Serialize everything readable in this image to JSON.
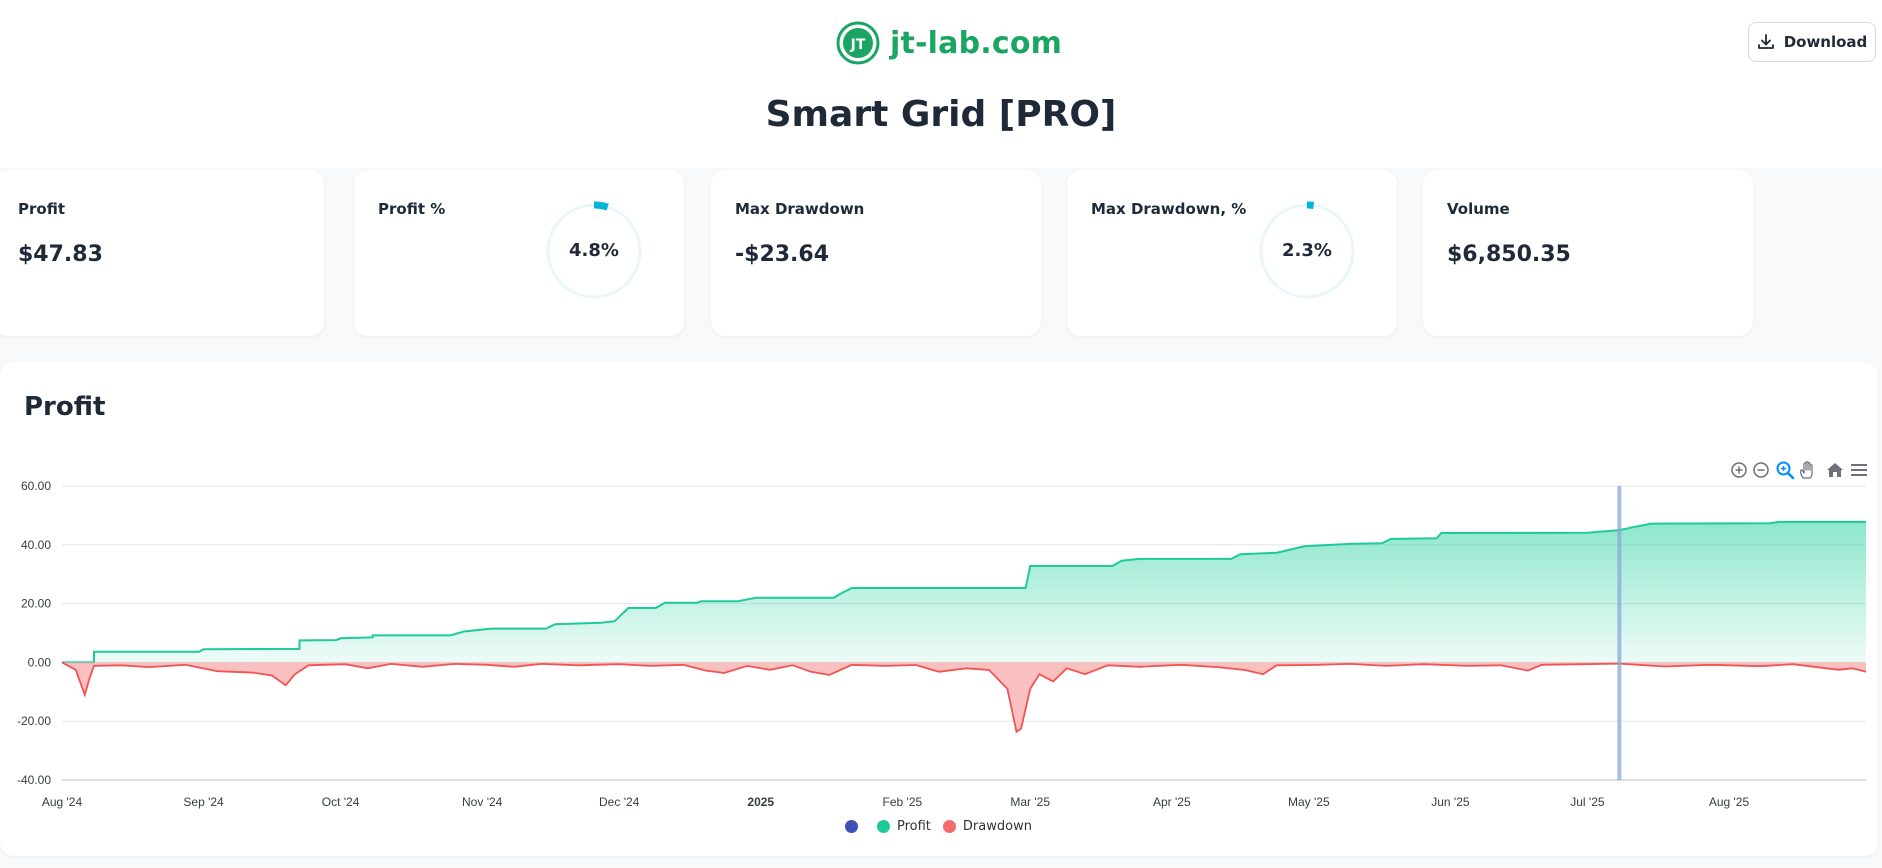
{
  "brand": {
    "name": "jt-lab.com",
    "logo_text": "JT",
    "color": "#1aa562"
  },
  "header": {
    "download_label": "Download",
    "download_icon": "download-icon"
  },
  "page": {
    "title": "Smart Grid [PRO]"
  },
  "metrics": [
    {
      "label": "Profit",
      "value": "$47.83"
    },
    {
      "label": "Profit %",
      "value": "4.8%",
      "percent": 4.8
    },
    {
      "label": "Max Drawdown",
      "value": "-$23.64"
    },
    {
      "label": "Max Drawdown, %",
      "value": "2.3%",
      "percent": 2.3
    },
    {
      "label": "Volume",
      "value": "$6,850.35"
    }
  ],
  "chart": {
    "title": "Profit"
  },
  "toolbar": [
    {
      "name": "zoom-in-icon"
    },
    {
      "name": "zoom-out-icon"
    },
    {
      "name": "selection-zoom-icon"
    },
    {
      "name": "pan-icon"
    },
    {
      "name": "home-icon"
    },
    {
      "name": "menu-icon"
    }
  ],
  "legend": [
    {
      "label": "",
      "color": "#3f51b5"
    },
    {
      "label": "Profit",
      "color": "#1ec99a"
    },
    {
      "label": "Drawdown",
      "color": "#f46b6b"
    }
  ],
  "colors": {
    "profit_line": "#1ec99a",
    "profit_fill": "#2fd3a3",
    "drawdown_line": "#f05454",
    "drawdown_fill": "#f9b4b4",
    "crosshair": "#8aa8d6",
    "accent": "#00b5d6"
  },
  "chart_data": {
    "type": "area",
    "title": "Profit",
    "xlabel": "",
    "ylabel": "",
    "ylim": [
      -40,
      60
    ],
    "yticks": [
      "60.00",
      "40.00",
      "20.00",
      "0.00",
      "-20.00",
      "-40.00"
    ],
    "xticks": [
      "Aug '24",
      "Sep '24",
      "Oct '24",
      "Nov '24",
      "Dec '24",
      "2025",
      "Feb '25",
      "Mar '25",
      "Apr '25",
      "May '25",
      "Jun '25",
      "Jul '25",
      "Aug '25"
    ],
    "x_range": [
      "2024-08-01",
      "2025-08-31"
    ],
    "crosshair_x": "2025-07-08",
    "grid": true,
    "legend_position": "bottom-center",
    "series": [
      {
        "name": "Profit",
        "points": [
          [
            "2024-08-01",
            0.0
          ],
          [
            "2024-08-08",
            0.0
          ],
          [
            "2024-08-08",
            3.6
          ],
          [
            "2024-08-31",
            3.6
          ],
          [
            "2024-09-01",
            4.5
          ],
          [
            "2024-09-22",
            4.6
          ],
          [
            "2024-09-22",
            7.5
          ],
          [
            "2024-09-30",
            7.6
          ],
          [
            "2024-10-01",
            8.2
          ],
          [
            "2024-10-08",
            8.5
          ],
          [
            "2024-10-08",
            9.2
          ],
          [
            "2024-10-25",
            9.2
          ],
          [
            "2024-10-28",
            10.5
          ],
          [
            "2024-11-03",
            11.5
          ],
          [
            "2024-11-15",
            11.5
          ],
          [
            "2024-11-17",
            13.0
          ],
          [
            "2024-11-27",
            13.5
          ],
          [
            "2024-11-30",
            14.0
          ],
          [
            "2024-12-03",
            18.5
          ],
          [
            "2024-12-09",
            18.5
          ],
          [
            "2024-12-11",
            20.3
          ],
          [
            "2024-12-18",
            20.3
          ],
          [
            "2024-12-19",
            20.8
          ],
          [
            "2024-12-27",
            20.8
          ],
          [
            "2024-12-31",
            22.0
          ],
          [
            "2025-01-17",
            22.0
          ],
          [
            "2025-01-19",
            23.8
          ],
          [
            "2025-01-21",
            25.3
          ],
          [
            "2025-02-28",
            25.3
          ],
          [
            "2025-03-01",
            32.8
          ],
          [
            "2025-03-19",
            32.8
          ],
          [
            "2025-03-21",
            34.6
          ],
          [
            "2025-03-25",
            35.2
          ],
          [
            "2025-04-14",
            35.2
          ],
          [
            "2025-04-16",
            36.8
          ],
          [
            "2025-04-24",
            37.3
          ],
          [
            "2025-04-30",
            39.5
          ],
          [
            "2025-05-10",
            40.3
          ],
          [
            "2025-05-17",
            40.5
          ],
          [
            "2025-05-19",
            42.0
          ],
          [
            "2025-05-29",
            42.2
          ],
          [
            "2025-05-30",
            44.0
          ],
          [
            "2025-07-01",
            44.1
          ],
          [
            "2025-07-08",
            45.0
          ],
          [
            "2025-07-11",
            46.0
          ],
          [
            "2025-07-15",
            47.2
          ],
          [
            "2025-08-10",
            47.3
          ],
          [
            "2025-08-12",
            47.8
          ],
          [
            "2025-08-31",
            47.8
          ]
        ]
      },
      {
        "name": "Drawdown",
        "points": [
          [
            "2024-08-01",
            0.0
          ],
          [
            "2024-08-04",
            -2.5
          ],
          [
            "2024-08-06",
            -11.0
          ],
          [
            "2024-08-07",
            -5.5
          ],
          [
            "2024-08-08",
            -1.2
          ],
          [
            "2024-08-14",
            -1.0
          ],
          [
            "2024-08-20",
            -1.6
          ],
          [
            "2024-08-28",
            -0.8
          ],
          [
            "2024-09-04",
            -3.0
          ],
          [
            "2024-09-12",
            -3.5
          ],
          [
            "2024-09-16",
            -4.5
          ],
          [
            "2024-09-19",
            -7.8
          ],
          [
            "2024-09-21",
            -4.0
          ],
          [
            "2024-09-24",
            -1.0
          ],
          [
            "2024-10-02",
            -0.6
          ],
          [
            "2024-10-07",
            -2.0
          ],
          [
            "2024-10-12",
            -0.5
          ],
          [
            "2024-10-19",
            -1.5
          ],
          [
            "2024-10-26",
            -0.5
          ],
          [
            "2024-11-02",
            -0.8
          ],
          [
            "2024-11-08",
            -1.5
          ],
          [
            "2024-11-14",
            -0.5
          ],
          [
            "2024-11-22",
            -1.0
          ],
          [
            "2024-12-01",
            -0.6
          ],
          [
            "2024-12-08",
            -1.2
          ],
          [
            "2024-12-15",
            -0.8
          ],
          [
            "2024-12-20",
            -2.8
          ],
          [
            "2024-12-24",
            -3.6
          ],
          [
            "2024-12-29",
            -1.2
          ],
          [
            "2025-01-03",
            -2.5
          ],
          [
            "2025-01-08",
            -1.0
          ],
          [
            "2025-01-12",
            -3.2
          ],
          [
            "2025-01-16",
            -4.3
          ],
          [
            "2025-01-21",
            -0.8
          ],
          [
            "2025-01-28",
            -1.2
          ],
          [
            "2025-02-04",
            -0.9
          ],
          [
            "2025-02-09",
            -3.2
          ],
          [
            "2025-02-15",
            -2.0
          ],
          [
            "2025-02-20",
            -2.6
          ],
          [
            "2025-02-24",
            -9.0
          ],
          [
            "2025-02-26",
            -23.6
          ],
          [
            "2025-02-27",
            -22.5
          ],
          [
            "2025-03-01",
            -9.0
          ],
          [
            "2025-03-03",
            -4.0
          ],
          [
            "2025-03-06",
            -6.5
          ],
          [
            "2025-03-09",
            -2.0
          ],
          [
            "2025-03-13",
            -4.0
          ],
          [
            "2025-03-18",
            -1.0
          ],
          [
            "2025-03-25",
            -1.5
          ],
          [
            "2025-04-03",
            -0.8
          ],
          [
            "2025-04-11",
            -1.6
          ],
          [
            "2025-04-17",
            -2.6
          ],
          [
            "2025-04-21",
            -4.0
          ],
          [
            "2025-04-24",
            -1.0
          ],
          [
            "2025-05-02",
            -0.9
          ],
          [
            "2025-05-10",
            -0.5
          ],
          [
            "2025-05-18",
            -1.2
          ],
          [
            "2025-05-26",
            -0.6
          ],
          [
            "2025-06-05",
            -1.2
          ],
          [
            "2025-06-12",
            -1.0
          ],
          [
            "2025-06-18",
            -2.8
          ],
          [
            "2025-06-21",
            -0.8
          ],
          [
            "2025-06-30",
            -0.6
          ],
          [
            "2025-07-08",
            -0.4
          ],
          [
            "2025-07-18",
            -1.4
          ],
          [
            "2025-07-28",
            -0.8
          ],
          [
            "2025-08-08",
            -1.3
          ],
          [
            "2025-08-15",
            -0.6
          ],
          [
            "2025-08-25",
            -2.5
          ],
          [
            "2025-08-28",
            -2.0
          ],
          [
            "2025-08-31",
            -3.2
          ]
        ]
      }
    ]
  }
}
